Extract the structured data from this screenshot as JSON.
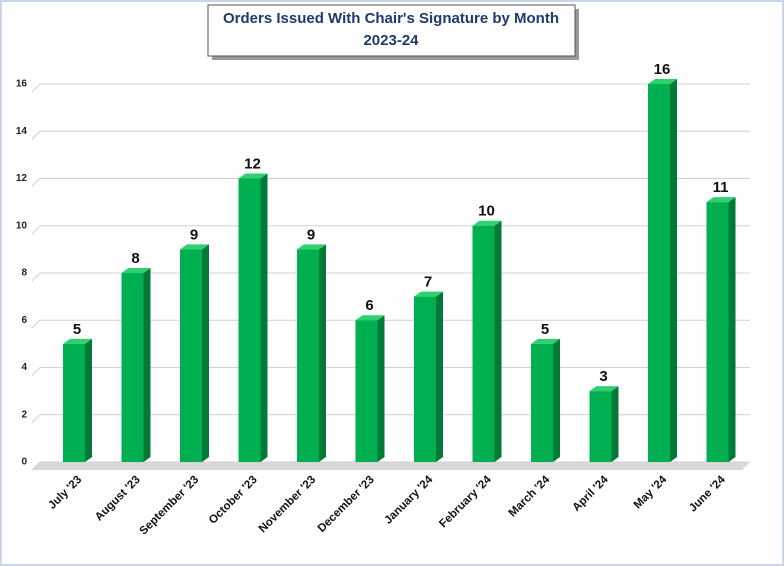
{
  "chart_data": {
    "type": "bar",
    "title": "Orders Issued With Chair's Signature by Month",
    "subtitle": "2023-24",
    "categories": [
      "July '23",
      "August '23",
      "September '23",
      "October '23",
      "November '23",
      "December '23",
      "January '24",
      "February '24",
      "March '24",
      "April '24",
      "May '24",
      "June '24"
    ],
    "values": [
      5,
      8,
      9,
      12,
      9,
      6,
      7,
      10,
      5,
      3,
      16,
      11
    ],
    "color": "#00b050",
    "ylim": [
      0,
      16
    ],
    "yticks": [
      0,
      2,
      4,
      6,
      8,
      10,
      12,
      14,
      16
    ],
    "grid": true
  }
}
